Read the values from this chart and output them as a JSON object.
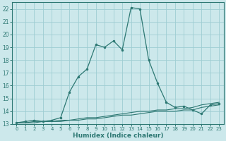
{
  "xlabel": "Humidex (Indice chaleur)",
  "bg_color": "#cce8eb",
  "grid_color": "#9ecdd2",
  "line_color": "#2d7873",
  "xlim": [
    -0.5,
    23.5
  ],
  "ylim": [
    13,
    22.5
  ],
  "xticks": [
    0,
    1,
    2,
    3,
    4,
    5,
    6,
    7,
    8,
    9,
    10,
    11,
    12,
    13,
    14,
    15,
    16,
    17,
    18,
    19,
    20,
    21,
    22,
    23
  ],
  "yticks": [
    13,
    14,
    15,
    16,
    17,
    18,
    19,
    20,
    21,
    22
  ],
  "series1_x": [
    0,
    1,
    2,
    3,
    4,
    5,
    6,
    7,
    8,
    9,
    10,
    11,
    12,
    13,
    14,
    15,
    16,
    17,
    18,
    19,
    20,
    21,
    22,
    23
  ],
  "series1_y": [
    13.1,
    13.2,
    13.3,
    13.2,
    13.3,
    13.5,
    15.5,
    16.7,
    17.3,
    19.2,
    19.0,
    19.5,
    18.8,
    22.1,
    22.0,
    18.0,
    16.2,
    14.7,
    14.3,
    14.4,
    14.1,
    13.8,
    14.5,
    14.6
  ],
  "series2_x": [
    0,
    1,
    2,
    3,
    4,
    5,
    6,
    7,
    8,
    9,
    10,
    11,
    12,
    13,
    14,
    15,
    16,
    17,
    18,
    19,
    20,
    21,
    22,
    23
  ],
  "series2_y": [
    13.1,
    13.1,
    13.2,
    13.2,
    13.2,
    13.3,
    13.3,
    13.4,
    13.5,
    13.5,
    13.6,
    13.7,
    13.8,
    13.9,
    14.0,
    14.0,
    14.1,
    14.1,
    14.2,
    14.2,
    14.3,
    14.5,
    14.6,
    14.7
  ],
  "series3_x": [
    0,
    1,
    2,
    3,
    4,
    5,
    6,
    7,
    8,
    9,
    10,
    11,
    12,
    13,
    14,
    15,
    16,
    17,
    18,
    19,
    20,
    21,
    22,
    23
  ],
  "series3_y": [
    13.1,
    13.1,
    13.1,
    13.2,
    13.2,
    13.2,
    13.3,
    13.3,
    13.4,
    13.4,
    13.5,
    13.6,
    13.7,
    13.7,
    13.8,
    13.9,
    14.0,
    14.0,
    14.0,
    14.1,
    14.1,
    14.3,
    14.4,
    14.5
  ]
}
